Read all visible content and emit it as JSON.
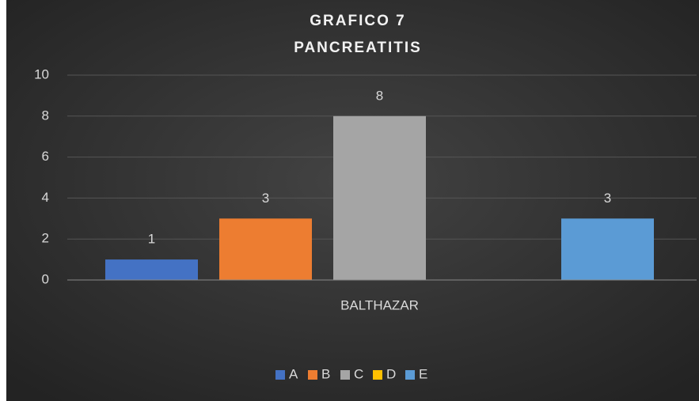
{
  "chart_data": {
    "type": "bar",
    "title": "GRAFICO 7",
    "subtitle": "PANCREATITIS",
    "categories": [
      "BALTHAZAR"
    ],
    "series": [
      {
        "name": "A",
        "color": "#4472c4",
        "values": [
          1
        ]
      },
      {
        "name": "B",
        "color": "#ed7d31",
        "values": [
          3
        ]
      },
      {
        "name": "C",
        "color": "#a5a5a5",
        "values": [
          8
        ]
      },
      {
        "name": "D",
        "color": "#ffc000",
        "values": [
          null
        ]
      },
      {
        "name": "E",
        "color": "#5b9bd5",
        "values": [
          3
        ]
      }
    ],
    "ylim": [
      0,
      10
    ],
    "yticks": [
      0,
      2,
      4,
      6,
      8,
      10
    ],
    "grid": true,
    "legend": "bottom"
  }
}
